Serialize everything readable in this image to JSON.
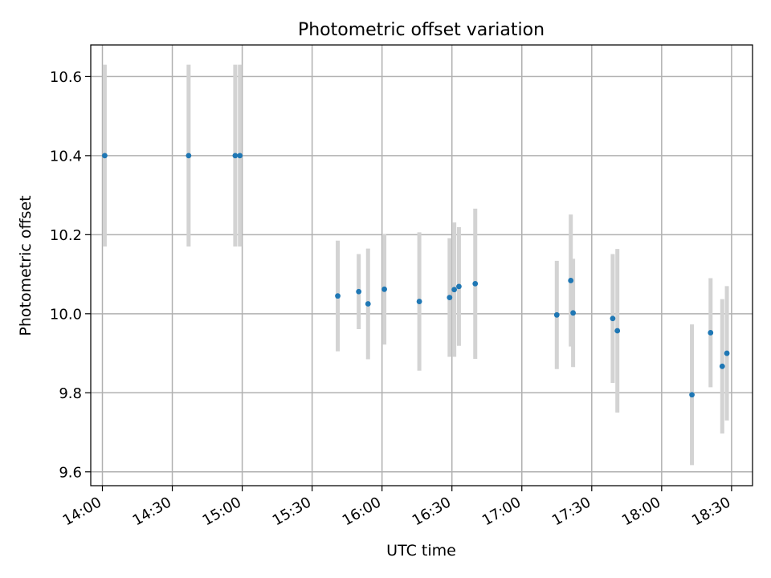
{
  "chart_data": {
    "type": "scatter",
    "title": "Photometric offset variation",
    "xlabel": "UTC time",
    "ylabel": "Photometric offset",
    "x_axis": "time",
    "xlim": [
      "13:55",
      "18:39"
    ],
    "ylim": [
      9.565,
      10.68
    ],
    "x_ticks": [
      "14:00",
      "14:30",
      "15:00",
      "15:30",
      "16:00",
      "16:30",
      "17:00",
      "17:30",
      "18:00",
      "18:30"
    ],
    "y_ticks": [
      "9.6",
      "9.8",
      "10.0",
      "10.2",
      "10.4",
      "10.6"
    ],
    "grid": true,
    "legend": "none",
    "colors": {
      "points": "#1f77b4",
      "error_bars": "#d3d3d3",
      "grid": "#b0b0b0"
    },
    "series": [
      {
        "points": [
          {
            "x": "14:01",
            "y": 10.4,
            "err": 0.23
          },
          {
            "x": "14:37",
            "y": 10.4,
            "err": 0.23
          },
          {
            "x": "14:57",
            "y": 10.4,
            "err": 0.23
          },
          {
            "x": "14:59",
            "y": 10.4,
            "err": 0.23
          },
          {
            "x": "15:41",
            "y": 10.045,
            "err": 0.14
          },
          {
            "x": "15:50",
            "y": 10.056,
            "err": 0.095
          },
          {
            "x": "15:54",
            "y": 10.025,
            "err": 0.14
          },
          {
            "x": "16:01",
            "y": 10.062,
            "err": 0.14
          },
          {
            "x": "16:16",
            "y": 10.031,
            "err": 0.175
          },
          {
            "x": "16:29",
            "y": 10.041,
            "err": 0.15
          },
          {
            "x": "16:31",
            "y": 10.061,
            "err": 0.17
          },
          {
            "x": "16:33",
            "y": 10.069,
            "err": 0.15
          },
          {
            "x": "16:40",
            "y": 10.076,
            "err": 0.19
          },
          {
            "x": "17:15",
            "y": 9.997,
            "err": 0.137
          },
          {
            "x": "17:21",
            "y": 10.084,
            "err": 0.167
          },
          {
            "x": "17:22",
            "y": 10.002,
            "err": 0.137
          },
          {
            "x": "17:39",
            "y": 9.988,
            "err": 0.163
          },
          {
            "x": "17:41",
            "y": 9.957,
            "err": 0.207
          },
          {
            "x": "18:13",
            "y": 9.795,
            "err": 0.178
          },
          {
            "x": "18:21",
            "y": 9.952,
            "err": 0.138
          },
          {
            "x": "18:26",
            "y": 9.867,
            "err": 0.17
          },
          {
            "x": "18:28",
            "y": 9.9,
            "err": 0.17
          }
        ]
      }
    ]
  }
}
